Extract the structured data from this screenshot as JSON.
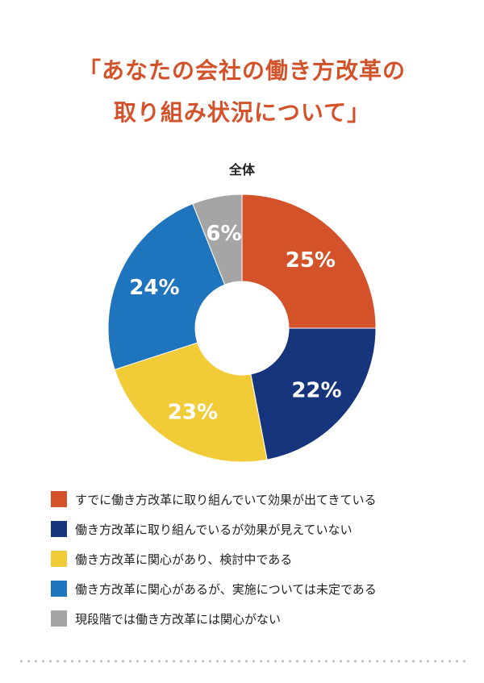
{
  "title_line1": "「あなたの会社の働き方改革の",
  "title_line2": "取り組み状況について」",
  "chart_data": {
    "type": "pie",
    "subtitle": "全体",
    "slices": [
      {
        "label": "すでに働き方改革に取り組んでいて効果が出てきている",
        "value": 25,
        "display": "25%",
        "color": "#d4522a"
      },
      {
        "label": "働き方改革に取り組んでいるが効果が見えていない",
        "value": 22,
        "display": "22%",
        "color": "#16357d"
      },
      {
        "label": "働き方改革に関心があり、検討中である",
        "value": 23,
        "display": "23%",
        "color": "#f2cb38"
      },
      {
        "label": "働き方改革に関心があるが、実施については未定である",
        "value": 24,
        "display": "24%",
        "color": "#1e74bd"
      },
      {
        "label": "現段階では働き方改革には関心がない",
        "value": 6,
        "display": "6%",
        "color": "#a5a5a5"
      }
    ]
  }
}
